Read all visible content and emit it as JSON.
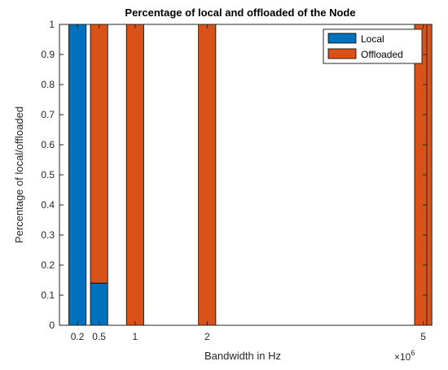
{
  "chart_data": {
    "type": "bar",
    "stacked": true,
    "title": "Percentage of local and offloaded of the Node",
    "xlabel": "Bandwidth in Hz",
    "ylabel": "Percentage of local/offloaded",
    "x_exponent_label": "×10",
    "x_exponent_power": "6",
    "x": [
      0.2,
      0.5,
      1,
      2,
      5
    ],
    "x_tick_labels": [
      "0.2",
      "0.5",
      "1",
      "2",
      "5"
    ],
    "xlim": [
      -0.05,
      5.05
    ],
    "ylim": [
      0,
      1
    ],
    "y_ticks": [
      0,
      0.1,
      0.2,
      0.3,
      0.4,
      0.5,
      0.6,
      0.7,
      0.8,
      0.9,
      1
    ],
    "y_tick_labels": [
      "0",
      "0.1",
      "0.2",
      "0.3",
      "0.4",
      "0.5",
      "0.6",
      "0.7",
      "0.8",
      "0.9",
      "1"
    ],
    "bar_width": 0.24,
    "series": [
      {
        "name": "Local",
        "color": "#0072BD",
        "values": [
          1,
          0.14,
          0,
          0,
          0
        ]
      },
      {
        "name": "Offloaded",
        "color": "#D95319",
        "values": [
          0,
          0.86,
          1,
          1,
          1
        ]
      }
    ],
    "legend": "top-right",
    "grid": false
  }
}
